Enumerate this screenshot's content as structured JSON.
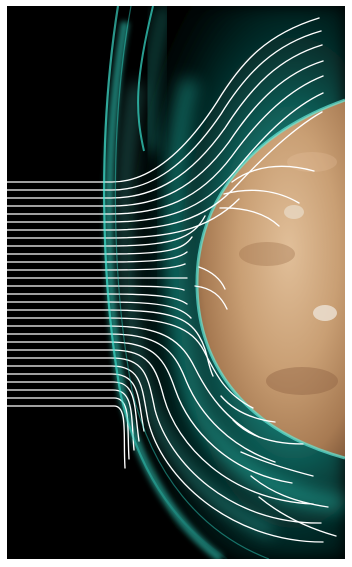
{
  "image": {
    "subject": "solar-wind-interaction-with-planet",
    "colors": {
      "background": "#000000",
      "border": "#ffffff",
      "plasma": "#22d8c4",
      "plasma_dark": "#0a5b55",
      "streamline": "#ffffff",
      "planet_light": "#d9b38c",
      "planet_mid": "#b98a5f",
      "planet_dark": "#7c5538"
    }
  }
}
